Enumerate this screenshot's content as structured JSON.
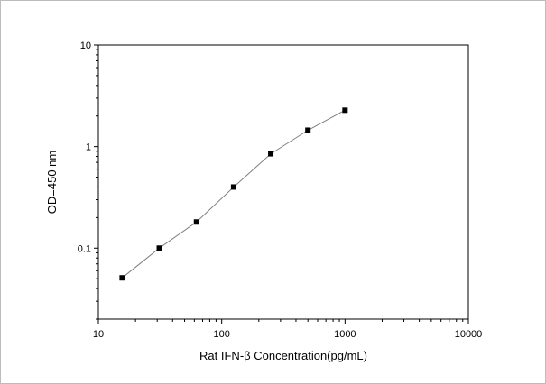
{
  "chart_data": {
    "type": "scatter",
    "title": "",
    "xlabel": "Rat  IFN-β Concentration(pg/mL)",
    "ylabel": "OD=450 nm",
    "x_scale": "log",
    "y_scale": "log",
    "xlim": [
      10,
      10000
    ],
    "ylim": [
      0.02,
      10
    ],
    "x_ticks": [
      {
        "value": 10,
        "label": "10"
      },
      {
        "value": 100,
        "label": "100"
      },
      {
        "value": 1000,
        "label": "1000"
      },
      {
        "value": 10000,
        "label": "10000"
      }
    ],
    "y_ticks": [
      {
        "value": 0.1,
        "label": "0.1"
      },
      {
        "value": 1,
        "label": "1"
      },
      {
        "value": 10,
        "label": "10"
      }
    ],
    "grid": false,
    "legend": "none",
    "series": [
      {
        "x": [
          15.6,
          31.2,
          62.5,
          125,
          250,
          500,
          1000
        ],
        "y": [
          0.051,
          0.1,
          0.181,
          0.4,
          0.85,
          1.45,
          2.28
        ],
        "marker": "square",
        "marker_color": "#000000",
        "line_color": "#7f7f7f"
      }
    ]
  }
}
